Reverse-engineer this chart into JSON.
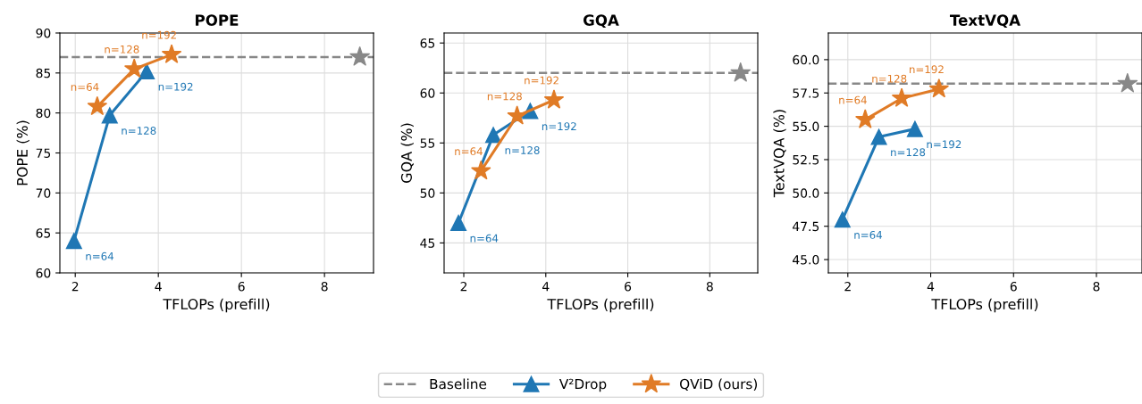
{
  "chart_data": [
    {
      "type": "line",
      "title": "POPE",
      "xlabel": "TFLOPs (prefill)",
      "ylabel": "POPE (%)",
      "xlim": [
        1.63,
        9.18
      ],
      "xticks": [
        2,
        4,
        6,
        8
      ],
      "ylim": [
        60,
        90
      ],
      "yticks": [
        60,
        65,
        70,
        75,
        80,
        85,
        90
      ],
      "grid": true,
      "legend": "bottom",
      "line_style": "solid",
      "ref_lines": [
        {
          "axis": "y",
          "value": 87.0,
          "label": "Baseline",
          "color": "#888888",
          "line_style": "dashed"
        }
      ],
      "series": [
        {
          "name": "V²Drop",
          "color": "#1f77b4",
          "marker": "triangle",
          "x": [
            1.97,
            2.83,
            3.72
          ],
          "values": [
            64.0,
            79.7,
            85.2
          ]
        },
        {
          "name": "QViD (ours)",
          "color": "#e07b26",
          "marker": "star",
          "x": [
            2.53,
            3.42,
            4.32
          ],
          "values": [
            80.8,
            85.5,
            87.3
          ]
        },
        {
          "type": "scatter",
          "color": "#888888",
          "marker": "star",
          "x": [
            8.85
          ],
          "values": [
            87.0
          ]
        }
      ],
      "annotations": [
        {
          "text": "n=64",
          "x": 1.97,
          "y": 64.0
        },
        {
          "text": "n=128",
          "x": 2.83,
          "y": 79.7
        },
        {
          "text": "n=192",
          "x": 3.72,
          "y": 85.2
        },
        {
          "text": "n=64",
          "x": 2.53,
          "y": 80.8
        },
        {
          "text": "n=128",
          "x": 3.42,
          "y": 85.5
        },
        {
          "text": "n=192",
          "x": 4.32,
          "y": 87.3
        }
      ]
    },
    {
      "type": "line",
      "title": "GQA",
      "xlabel": "TFLOPs (prefill)",
      "ylabel": "GQA (%)",
      "xlim": [
        1.52,
        9.17
      ],
      "xticks": [
        2,
        4,
        6,
        8
      ],
      "ylim": [
        42,
        66
      ],
      "yticks": [
        45,
        50,
        55,
        60,
        65
      ],
      "grid": true,
      "line_style": "solid",
      "ref_lines": [
        {
          "axis": "y",
          "value": 62.0,
          "color": "#888888",
          "line_style": "dashed"
        }
      ],
      "series": [
        {
          "color": "#1f77b4",
          "marker": "triangle",
          "x": [
            1.87,
            2.72,
            3.62
          ],
          "values": [
            47.0,
            55.8,
            58.2
          ]
        },
        {
          "color": "#e07b26",
          "marker": "star",
          "x": [
            2.42,
            3.3,
            4.2
          ],
          "values": [
            52.2,
            57.7,
            59.3
          ]
        },
        {
          "type": "scatter",
          "color": "#888888",
          "marker": "star",
          "x": [
            8.75
          ],
          "values": [
            62.0
          ]
        }
      ],
      "annotations": [
        {
          "text": "n=64",
          "x": 1.87,
          "y": 47.0
        },
        {
          "text": "n=128",
          "x": 2.72,
          "y": 55.8
        },
        {
          "text": "n=192",
          "x": 3.62,
          "y": 58.2
        },
        {
          "text": "n=64",
          "x": 2.42,
          "y": 52.2
        },
        {
          "text": "n=128",
          "x": 3.3,
          "y": 57.7
        },
        {
          "text": "n=192",
          "x": 4.2,
          "y": 59.3
        }
      ]
    },
    {
      "type": "line",
      "title": "TextVQA",
      "xlabel": "TFLOPs (prefill)",
      "ylabel": "TextVQA (%)",
      "xlim": [
        1.53,
        9.1
      ],
      "xticks": [
        2,
        4,
        6,
        8
      ],
      "ylim": [
        44,
        62
      ],
      "yticks": [
        {
          "value": 45,
          "label": "45.0"
        },
        {
          "value": 47.5,
          "label": "47.5"
        },
        {
          "value": 50,
          "label": "50.0"
        },
        {
          "value": 52.5,
          "label": "52.5"
        },
        {
          "value": 55,
          "label": "55.0"
        },
        {
          "value": 57.5,
          "label": "57.5"
        },
        {
          "value": 60,
          "label": "60.0"
        }
      ],
      "grid": true,
      "line_style": "solid",
      "ref_lines": [
        {
          "axis": "y",
          "value": 58.2,
          "color": "#888888",
          "line_style": "dashed"
        }
      ],
      "series": [
        {
          "color": "#1f77b4",
          "marker": "triangle",
          "x": [
            1.87,
            2.75,
            3.62
          ],
          "values": [
            48.0,
            54.2,
            54.8
          ]
        },
        {
          "color": "#e07b26",
          "marker": "star",
          "x": [
            2.42,
            3.3,
            4.2
          ],
          "values": [
            55.5,
            57.1,
            57.8
          ]
        },
        {
          "type": "scatter",
          "color": "#888888",
          "marker": "star",
          "x": [
            8.75
          ],
          "values": [
            58.2
          ]
        }
      ],
      "annotations": [
        {
          "text": "n=64",
          "x": 1.87,
          "y": 48.0
        },
        {
          "text": "n=128",
          "x": 2.75,
          "y": 54.2
        },
        {
          "text": "n=192",
          "x": 3.62,
          "y": 54.8
        },
        {
          "text": "n=64",
          "x": 2.42,
          "y": 55.5
        },
        {
          "text": "n=128",
          "x": 3.3,
          "y": 57.1
        },
        {
          "text": "n=192",
          "x": 4.2,
          "y": 57.8
        }
      ]
    }
  ]
}
